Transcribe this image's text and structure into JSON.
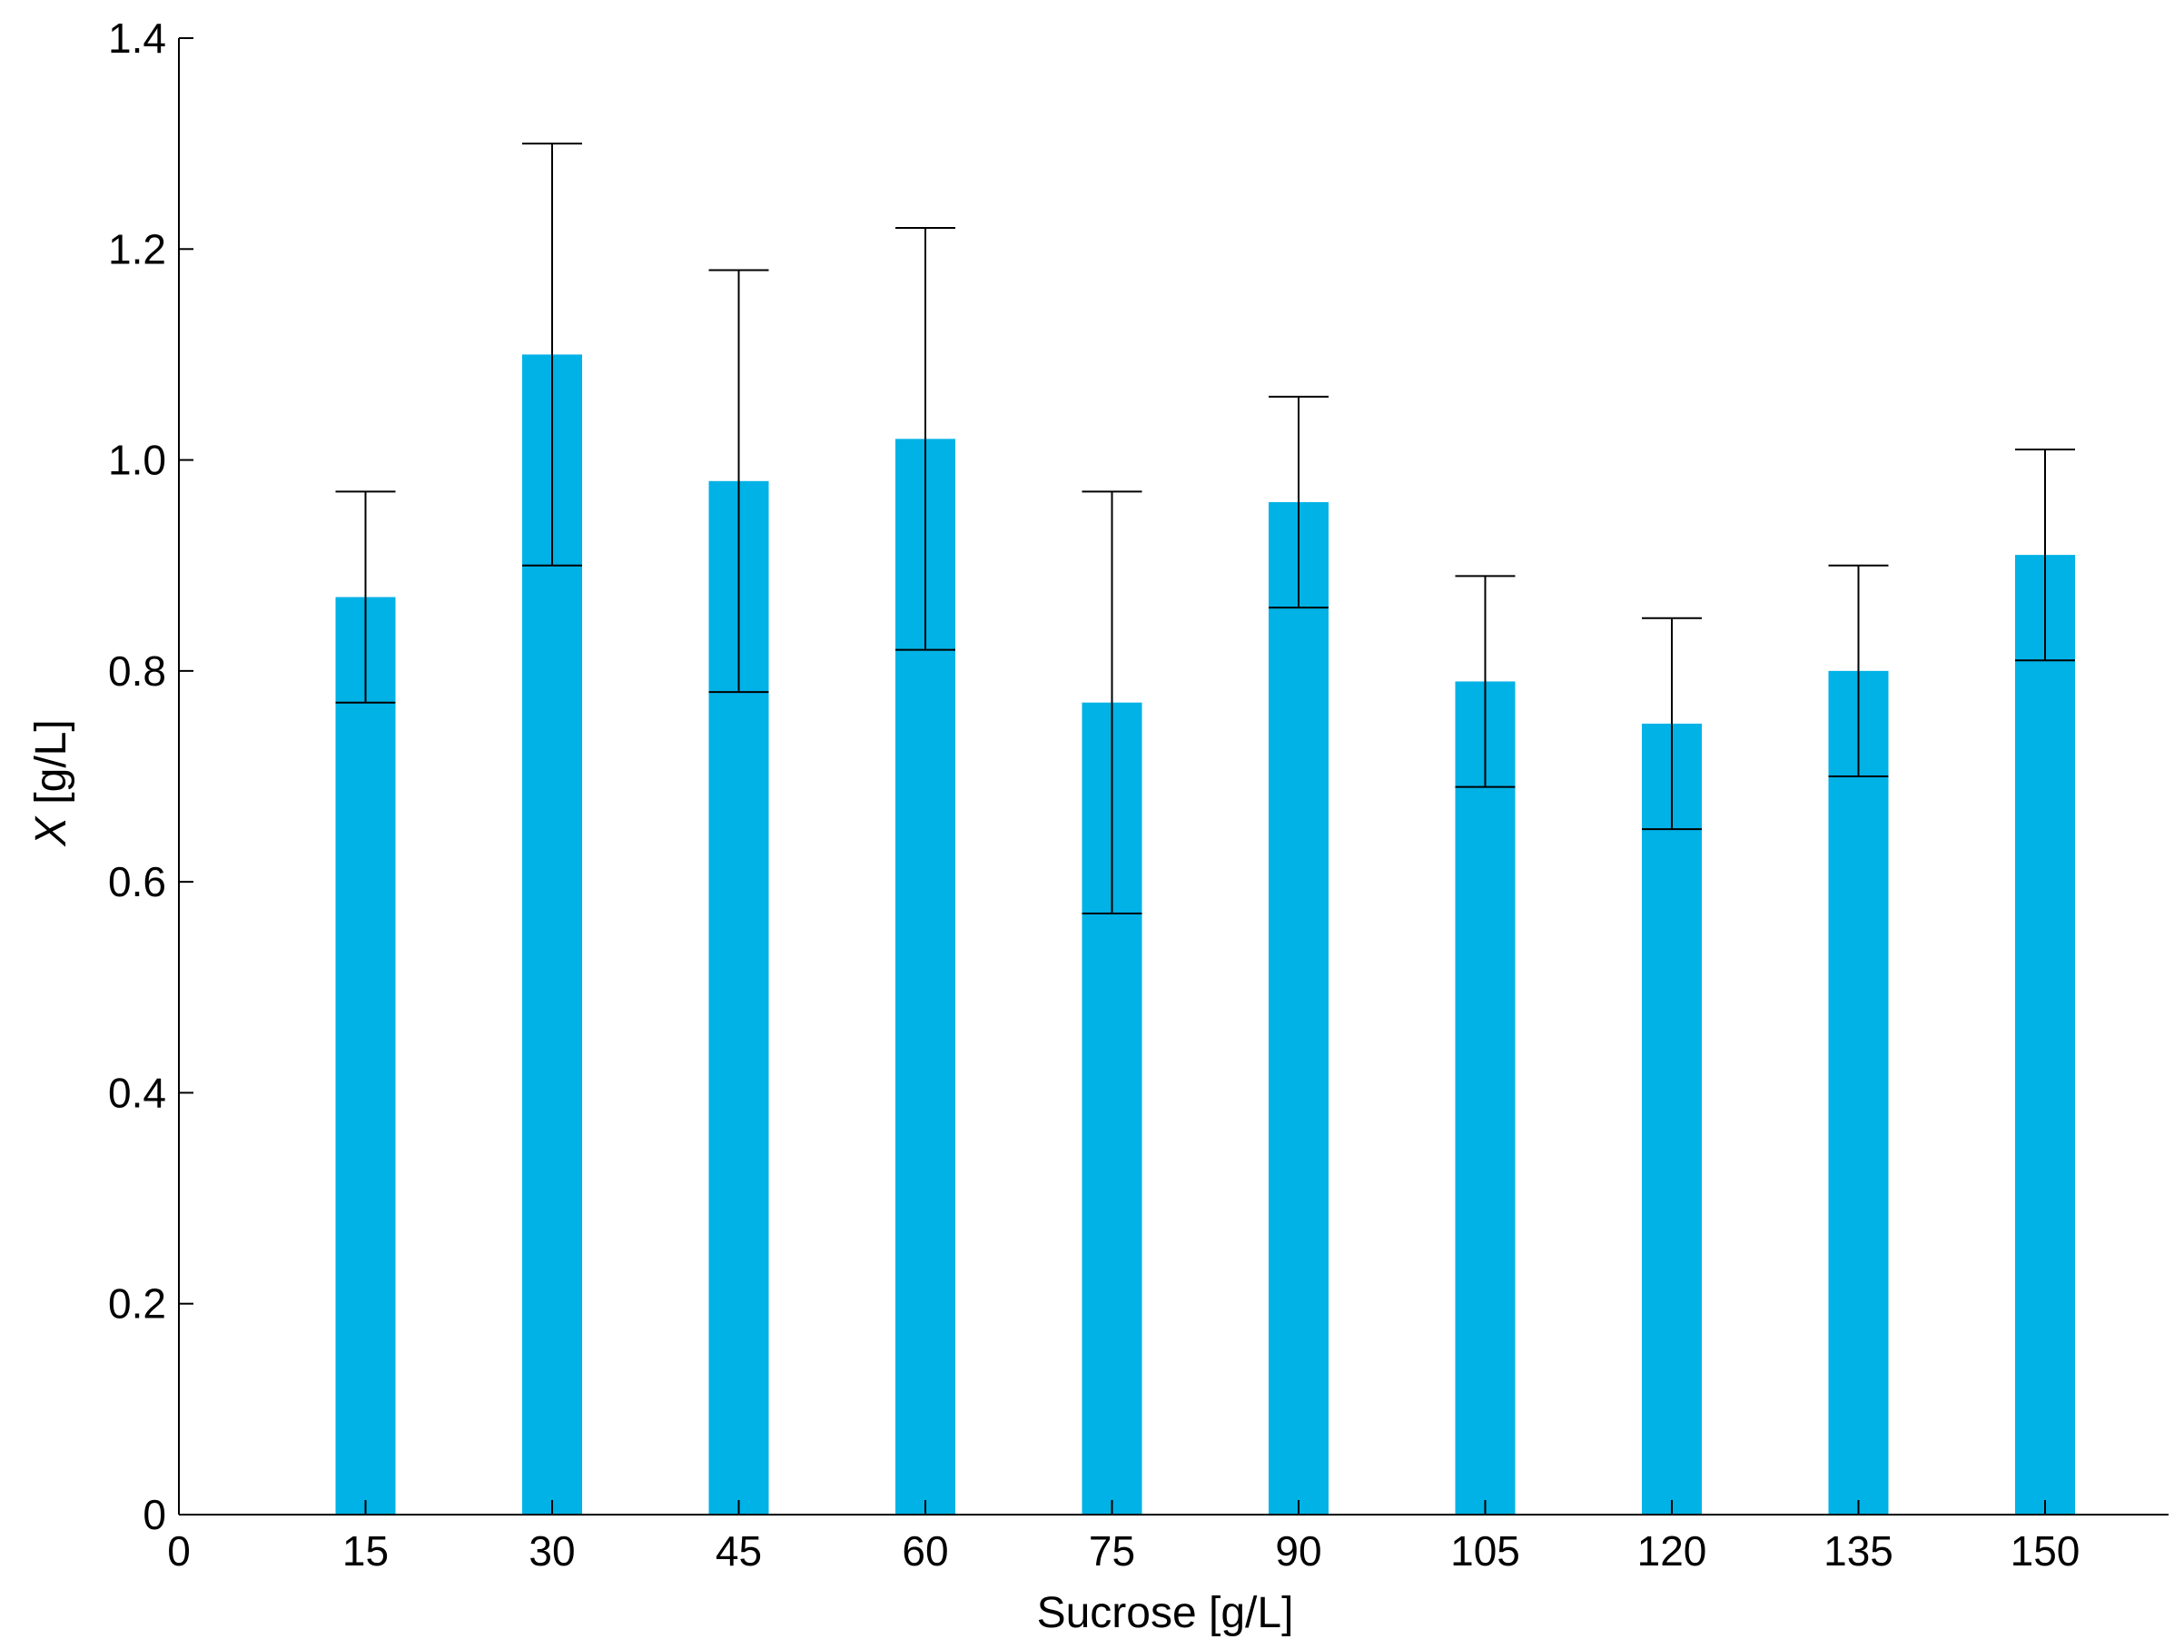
{
  "chart_data": {
    "type": "bar",
    "title": "",
    "xlabel": "Sucrose [g/L]",
    "ylabel_symbol": "X",
    "ylabel_unit": "[g/L]",
    "categories": [
      "15",
      "30",
      "45",
      "60",
      "75",
      "90",
      "105",
      "120",
      "135",
      "150"
    ],
    "x": [
      15,
      30,
      45,
      60,
      75,
      90,
      105,
      120,
      135,
      150
    ],
    "values": [
      0.87,
      1.1,
      0.98,
      1.02,
      0.77,
      0.96,
      0.79,
      0.75,
      0.8,
      0.91
    ],
    "error": [
      0.1,
      0.2,
      0.2,
      0.2,
      0.2,
      0.1,
      0.1,
      0.1,
      0.1,
      0.1
    ],
    "xlim": [
      0,
      160
    ],
    "ylim": [
      0,
      1.4
    ],
    "xticks": [
      0,
      15,
      30,
      45,
      60,
      75,
      90,
      105,
      120,
      135,
      150
    ],
    "yticks": [
      0,
      0.2,
      0.4,
      0.6,
      0.8,
      1.0,
      1.2,
      1.4
    ],
    "ytick_labels": [
      "0",
      "0.2",
      "0.4",
      "0.6",
      "0.8",
      "1.0",
      "1.2",
      "1.4"
    ],
    "bar_color": "#00B2E6",
    "error_bar_color": "#000000",
    "grid": false,
    "legend": "none"
  }
}
